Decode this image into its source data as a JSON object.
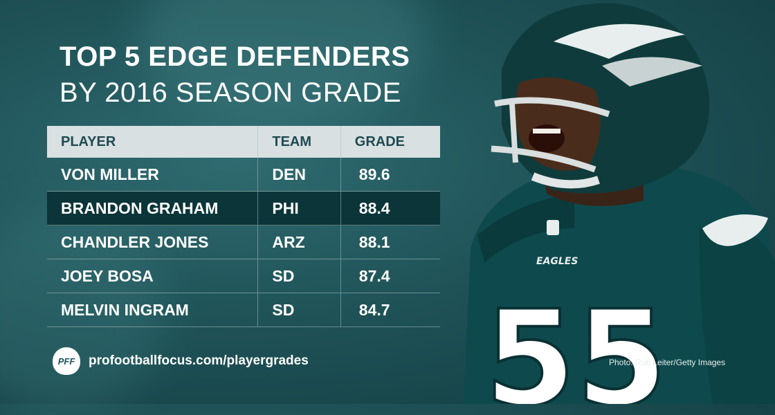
{
  "title_line1": "TOP 5 EDGE DEFENDERS",
  "title_line2": "BY 2016 SEASON GRADE",
  "table": {
    "headers": [
      "PLAYER",
      "TEAM",
      "GRADE"
    ],
    "rows": [
      {
        "player": "VON MILLER",
        "team": "DEN",
        "grade": "89.6"
      },
      {
        "player": "BRANDON GRAHAM",
        "team": "PHI",
        "grade": "88.4"
      },
      {
        "player": "CHANDLER JONES",
        "team": "ARZ",
        "grade": "88.1"
      },
      {
        "player": "JOEY BOSA",
        "team": "SD",
        "grade": "87.4"
      },
      {
        "player": "MELVIN INGRAM",
        "team": "SD",
        "grade": "84.7"
      }
    ]
  },
  "footer": {
    "logo_text": "PFF",
    "url": "profootballfocus.com/playergrades"
  },
  "photo_credit": "Photo: Rob Leiter/Getty Images",
  "player_image": {
    "jersey_number": "55",
    "chest_text": "EAGLES"
  },
  "colors": {
    "background": "#1f5358",
    "header_row": "#d9e0e2",
    "highlight_row": "#0b3538",
    "jersey": "#0e4a4d",
    "helmet": "#0f3b3c"
  }
}
